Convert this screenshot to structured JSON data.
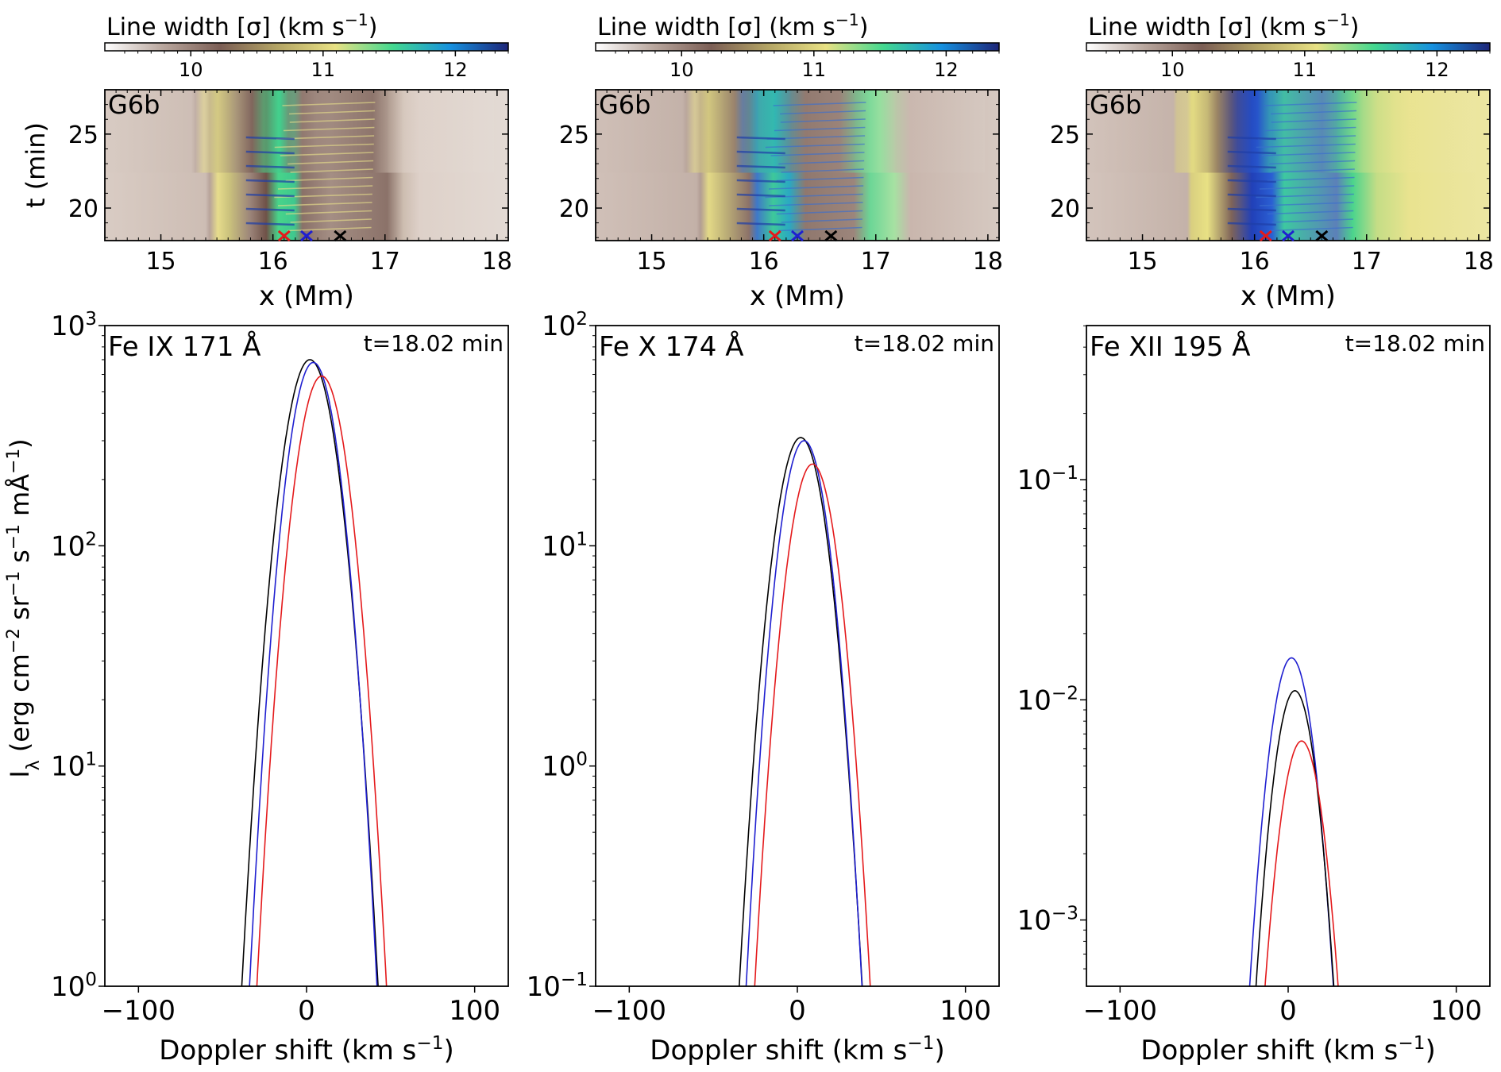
{
  "colorbar": {
    "label": "Line width [σ] (km s",
    "label_sup": "−1",
    "label_close": ")",
    "ticks": [
      "10",
      "11",
      "12"
    ],
    "range": [
      9.35,
      12.4
    ],
    "colors": [
      "#ffffff",
      "#b9a79e",
      "#7b5e55",
      "#b4a565",
      "#e8e184",
      "#43d88f",
      "#1690df",
      "#1e2578"
    ]
  },
  "spacetime": {
    "panel_label": "G6b",
    "xlabel": "x (Mm)",
    "ylabel": "t (min)",
    "xticks": [
      "15",
      "16",
      "17",
      "18"
    ],
    "yticks": [
      "20",
      "25"
    ],
    "xlim": [
      14.5,
      18.1
    ],
    "ylim": [
      17.8,
      28.0
    ],
    "markers": [
      {
        "x": 16.1,
        "color": "#e41a1c"
      },
      {
        "x": 16.3,
        "color": "#1f1fd0"
      },
      {
        "x": 16.6,
        "color": "#000000"
      }
    ]
  },
  "chart_data": [
    {
      "type": "line",
      "line": "Fe IX 171 Å",
      "time_label": "t=18.02 min",
      "xlabel": "Doppler shift (km s",
      "xlabel_sup": "−1",
      "xlabel_close": ")",
      "ylabel": "I",
      "ylabel_sub": "λ",
      "ylabel_rest": " (erg cm",
      "ylabel_sup1": "−2",
      "ylabel_mid1": " sr",
      "ylabel_sup2": "−1",
      "ylabel_mid2": " s",
      "ylabel_sup3": "−1",
      "ylabel_mid3": " mÅ",
      "ylabel_sup4": "−1",
      "ylabel_end": ")",
      "xlim": [
        -120,
        120
      ],
      "ylog": [
        0,
        3
      ],
      "xticks": [
        "−100",
        "0",
        "100"
      ],
      "ytick_base": "10",
      "ytick_exps": [
        "0",
        "1",
        "2",
        "3"
      ],
      "series": [
        {
          "color": "#000000",
          "peak": 700,
          "center": 2,
          "sigma": 11.2
        },
        {
          "color": "#1f1fd0",
          "peak": 680,
          "center": 4,
          "sigma": 10.5
        },
        {
          "color": "#e41a1c",
          "peak": 590,
          "center": 9,
          "sigma": 10.8
        }
      ]
    },
    {
      "type": "line",
      "line": "Fe X 174 Å",
      "time_label": "t=18.02 min",
      "xlabel": "Doppler shift (km s",
      "xlabel_sup": "−1",
      "xlabel_close": ")",
      "xlim": [
        -120,
        120
      ],
      "ylog": [
        -1,
        2
      ],
      "xticks": [
        "−100",
        "0",
        "100"
      ],
      "ytick_base": "10",
      "ytick_exps": [
        "−1",
        "0",
        "1",
        "2"
      ],
      "series": [
        {
          "color": "#000000",
          "peak": 31,
          "center": 2,
          "sigma": 10.8
        },
        {
          "color": "#1f1fd0",
          "peak": 30,
          "center": 4,
          "sigma": 10.2
        },
        {
          "color": "#e41a1c",
          "peak": 23.5,
          "center": 9,
          "sigma": 10.4
        }
      ]
    },
    {
      "type": "line",
      "line": "Fe XII 195 Å",
      "time_label": "t=18.02 min",
      "xlabel": "Doppler shift (km s",
      "xlabel_sup": "−1",
      "xlabel_close": ")",
      "xlim": [
        -120,
        120
      ],
      "ylog": [
        -3.301,
        -0.3
      ],
      "xticks": [
        "−100",
        "0",
        "100"
      ],
      "ytick_base": "10",
      "ytick_exps": [
        "−3",
        "−2",
        "−1"
      ],
      "series": [
        {
          "color": "#1f1fd0",
          "peak": 0.0155,
          "center": 2,
          "sigma": 9.5
        },
        {
          "color": "#000000",
          "peak": 0.011,
          "center": 4,
          "sigma": 9.3
        },
        {
          "color": "#e41a1c",
          "peak": 0.0065,
          "center": 8,
          "sigma": 9.6
        }
      ]
    }
  ]
}
